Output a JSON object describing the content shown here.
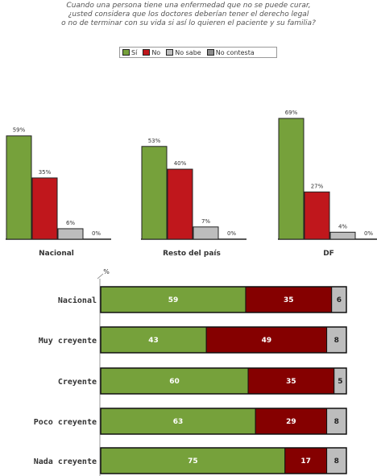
{
  "title": {
    "line1": "Cuando una persona tiene una enfermedad que no se puede curar,",
    "line2": "¿usted considera que los doctores deberían tener el derecho legal",
    "line3": "o no de terminar con su vida si así lo quieren el paciente y su familia?"
  },
  "legend": [
    {
      "label": "Sí",
      "color": "#76a13b"
    },
    {
      "label": "No",
      "color": "#c0171c"
    },
    {
      "label": "No sabe",
      "color": "#bdbdbd"
    },
    {
      "label": "No contesta",
      "color": "#8c8c8c"
    }
  ],
  "chart_data": [
    {
      "type": "bar",
      "categories": [
        "Sí",
        "No",
        "No sabe",
        "No contesta"
      ],
      "series": [
        {
          "name": "Nacional",
          "values": [
            59,
            35,
            6,
            0
          ]
        },
        {
          "name": "Resto del país",
          "values": [
            53,
            40,
            7,
            0
          ]
        },
        {
          "name": "DF",
          "values": [
            69,
            27,
            4,
            0
          ]
        }
      ],
      "ylim": [
        0,
        69
      ],
      "value_suffix": "%",
      "colors": [
        "#76a13b",
        "#c0171c",
        "#bdbdbd",
        "#8c8c8c"
      ]
    },
    {
      "type": "bar",
      "orientation": "horizontal",
      "stacked": true,
      "unit_label": "%",
      "categories": [
        "Nacional",
        "Muy creyente",
        "Creyente",
        "Poco creyente",
        "Nada creyente"
      ],
      "series": [
        {
          "name": "Sí",
          "values": [
            59,
            43,
            60,
            63,
            75
          ],
          "color": "#76a13b"
        },
        {
          "name": "No",
          "values": [
            35,
            49,
            35,
            29,
            17
          ],
          "color": "#850000"
        },
        {
          "name": "No sabe",
          "values": [
            6,
            8,
            5,
            8,
            8
          ],
          "color": "#bdbdbd"
        }
      ],
      "xlim": [
        0,
        100
      ]
    }
  ]
}
